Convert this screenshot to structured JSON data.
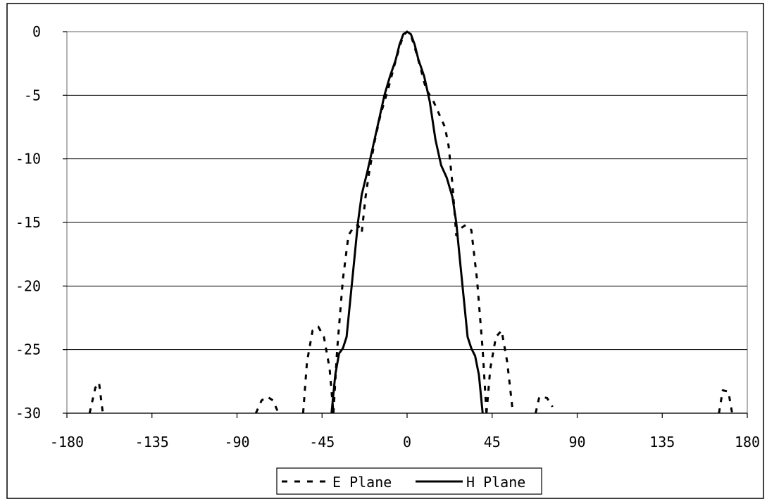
{
  "chart_data": {
    "type": "line",
    "title": "",
    "xlabel": "",
    "ylabel": "",
    "xlim": [
      -180,
      180
    ],
    "ylim": [
      -30,
      0
    ],
    "x_ticks": [
      -180,
      -135,
      -90,
      -45,
      0,
      45,
      90,
      135,
      180
    ],
    "y_ticks": [
      0,
      -5,
      -10,
      -15,
      -20,
      -25,
      -30
    ],
    "x_tick_labels": [
      "-180",
      "-135",
      "-90",
      "-45",
      "0",
      "45",
      "90",
      "135",
      "180"
    ],
    "y_tick_labels": [
      "0",
      "-5",
      "-10",
      "-15",
      "-20",
      "-25",
      "-30"
    ],
    "grid": "horizontal",
    "legend_position": "bottom-center",
    "series": [
      {
        "name": "E Plane",
        "style": "dashed",
        "segments": [
          [
            [
              -168,
              -30
            ],
            [
              -165,
              -28
            ],
            [
              -163,
              -27.6
            ],
            [
              -161,
              -30
            ]
          ],
          [
            [
              -80,
              -30
            ],
            [
              -77,
              -29
            ],
            [
              -74,
              -28.7
            ],
            [
              -71,
              -29
            ],
            [
              -68,
              -30
            ]
          ],
          [
            [
              -55,
              -30
            ],
            [
              -53,
              -26
            ],
            [
              -50,
              -23.5
            ],
            [
              -47,
              -23.2
            ],
            [
              -44,
              -24
            ],
            [
              -41,
              -26.5
            ],
            [
              -39,
              -30
            ]
          ],
          [
            [
              -39,
              -30
            ],
            [
              -37,
              -25
            ],
            [
              -34,
              -19.5
            ],
            [
              -31,
              -16
            ],
            [
              -28,
              -15.3
            ],
            [
              -26,
              -15.2
            ],
            [
              -24,
              -15.8
            ],
            [
              -22,
              -13
            ],
            [
              -20,
              -11
            ],
            [
              -17,
              -8.5
            ],
            [
              -14,
              -6.5
            ],
            [
              -10,
              -4.5
            ],
            [
              -7,
              -2.8
            ],
            [
              -4,
              -1.2
            ],
            [
              -2,
              -0.3
            ],
            [
              0,
              0
            ],
            [
              2,
              -0.3
            ],
            [
              4,
              -1.2
            ],
            [
              7,
              -2.8
            ],
            [
              10,
              -4.5
            ],
            [
              14,
              -5.5
            ],
            [
              17,
              -6.5
            ],
            [
              20,
              -7.5
            ],
            [
              22,
              -9
            ],
            [
              24,
              -12
            ],
            [
              26,
              -16
            ],
            [
              28,
              -15.5
            ],
            [
              31,
              -15.2
            ],
            [
              34,
              -15.6
            ],
            [
              37,
              -19.5
            ],
            [
              40,
              -25
            ],
            [
              42,
              -30
            ]
          ],
          [
            [
              42,
              -30
            ],
            [
              44,
              -26.5
            ],
            [
              47,
              -24
            ],
            [
              50,
              -23.5
            ],
            [
              53,
              -26
            ],
            [
              56,
              -30
            ]
          ],
          [
            [
              68,
              -30
            ],
            [
              70,
              -28.7
            ],
            [
              74,
              -28.8
            ],
            [
              77,
              -29.5
            ]
          ],
          [
            [
              165,
              -30
            ],
            [
              167,
              -28.2
            ],
            [
              170,
              -28.3
            ],
            [
              172,
              -30
            ]
          ]
        ]
      },
      {
        "name": "H Plane",
        "style": "solid",
        "segments": [
          [
            [
              -40,
              -30
            ],
            [
              -38,
              -27
            ],
            [
              -36,
              -25.3
            ],
            [
              -34,
              -24.9
            ],
            [
              -32,
              -24
            ],
            [
              -30,
              -21
            ],
            [
              -28,
              -18
            ],
            [
              -26,
              -15
            ],
            [
              -24,
              -12.8
            ],
            [
              -21,
              -11
            ],
            [
              -18,
              -9
            ],
            [
              -15,
              -7
            ],
            [
              -12,
              -5
            ],
            [
              -9,
              -3.5
            ],
            [
              -6,
              -2.2
            ],
            [
              -4,
              -1
            ],
            [
              -2,
              -0.2
            ],
            [
              0,
              0
            ],
            [
              2,
              -0.2
            ],
            [
              4,
              -1
            ],
            [
              6,
              -2.2
            ],
            [
              9,
              -3.5
            ],
            [
              12,
              -5.5
            ],
            [
              15,
              -8.5
            ],
            [
              18,
              -10.5
            ],
            [
              21,
              -11.5
            ],
            [
              24,
              -13
            ],
            [
              26,
              -15
            ],
            [
              28,
              -18
            ],
            [
              30,
              -21
            ],
            [
              32,
              -24
            ],
            [
              34,
              -24.9
            ],
            [
              36,
              -25.5
            ],
            [
              38,
              -27
            ],
            [
              40,
              -30
            ]
          ]
        ]
      }
    ]
  }
}
